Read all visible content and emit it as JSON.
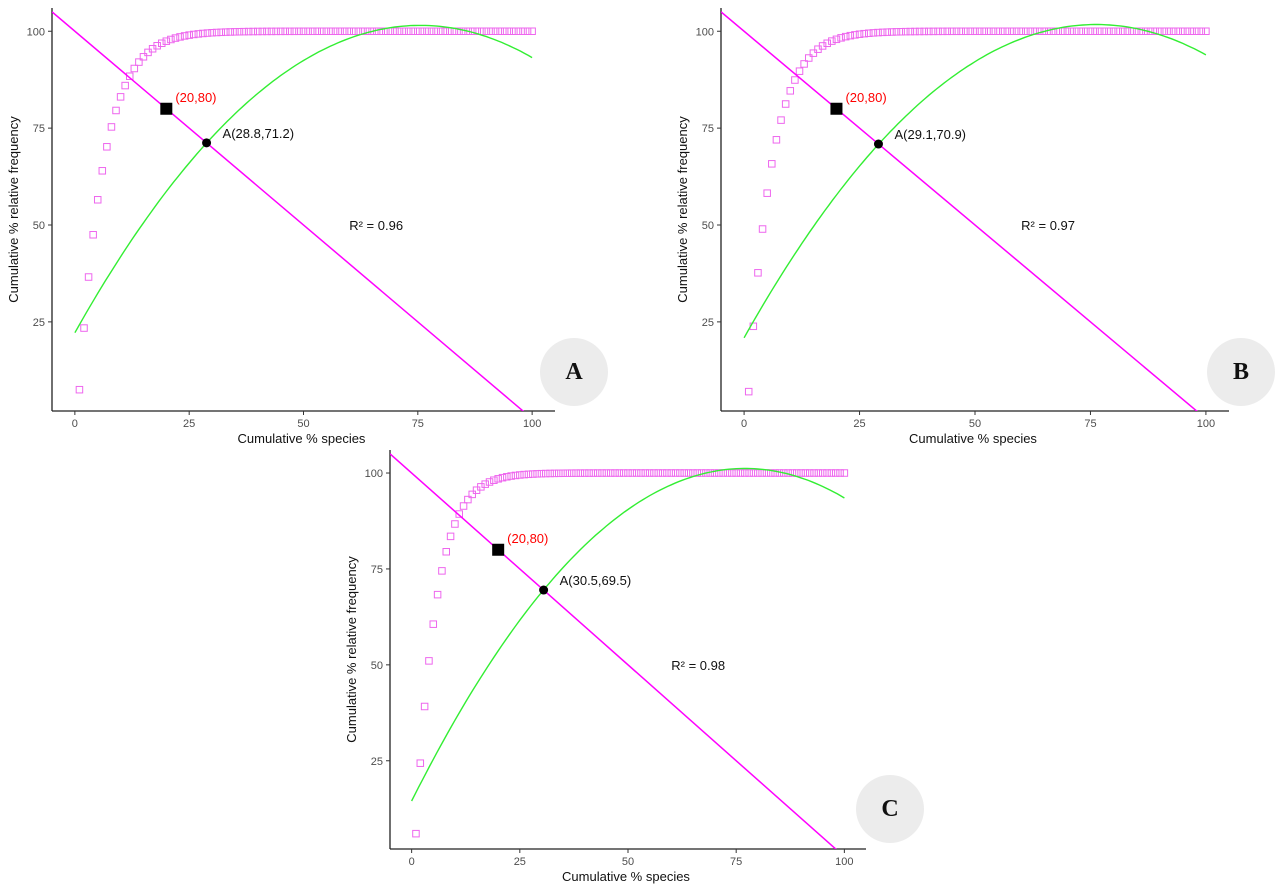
{
  "chart_data": [
    {
      "id": "A",
      "type": "scatter",
      "panel_label": "A",
      "xlabel": "Cumulative % species",
      "ylabel": "Cumulative % relative frequency",
      "xlim": [
        -5,
        105
      ],
      "ylim": [
        2,
        106
      ],
      "x_ticks": [
        0,
        25,
        50,
        75,
        100
      ],
      "y_ticks": [
        25,
        50,
        75,
        100
      ],
      "grid": false,
      "reference_point": {
        "x": 20,
        "y": 80,
        "label": "(20,80)"
      },
      "intersection": {
        "x": 28.8,
        "y": 71.2,
        "label": "A(28.8,71.2)"
      },
      "diagonal_line": {
        "intercept": 100,
        "slope": -1
      },
      "fit": {
        "type": "quadratic",
        "a": -0.0139,
        "b": 2.1,
        "c": 22.2,
        "x_range": [
          0,
          100
        ]
      },
      "r_squared_label": "R² = 0.96",
      "r_squared_position": {
        "x": 60,
        "y": 50
      },
      "points": {
        "x_range": [
          1,
          100
        ],
        "count": 100,
        "min_y": 7.5,
        "max_y": 100,
        "k": 5.3
      },
      "colors": {
        "line": "#ff00ff",
        "fit": "#33ee33",
        "points": "#ee66ee",
        "reference_label": "#ff0000"
      }
    },
    {
      "id": "B",
      "type": "scatter",
      "panel_label": "B",
      "xlabel": "Cumulative % species",
      "ylabel": "Cumulative % relative frequency",
      "xlim": [
        -5,
        105
      ],
      "ylim": [
        2,
        106
      ],
      "x_ticks": [
        0,
        25,
        50,
        75,
        100
      ],
      "y_ticks": [
        25,
        50,
        75,
        100
      ],
      "grid": false,
      "reference_point": {
        "x": 20,
        "y": 80,
        "label": "(20,80)"
      },
      "intersection": {
        "x": 29.1,
        "y": 70.9,
        "label": "A(29.1,70.9)"
      },
      "diagonal_line": {
        "intercept": 100,
        "slope": -1
      },
      "fit": {
        "type": "quadratic",
        "a": -0.0139,
        "b": 2.12,
        "c": 20.9,
        "x_range": [
          0,
          100
        ]
      },
      "r_squared_label": "R² = 0.97",
      "r_squared_position": {
        "x": 60,
        "y": 50
      },
      "points": {
        "x_range": [
          1,
          100
        ],
        "count": 100,
        "min_y": 7.0,
        "max_y": 100,
        "k": 5.0
      },
      "colors": {
        "line": "#ff00ff",
        "fit": "#33ee33",
        "points": "#ee66ee",
        "reference_label": "#ff0000"
      }
    },
    {
      "id": "C",
      "type": "scatter",
      "panel_label": "C",
      "xlabel": "Cumulative % species",
      "ylabel": "Cumulative % relative frequency",
      "xlim": [
        -5,
        105
      ],
      "ylim": [
        2,
        106
      ],
      "x_ticks": [
        0,
        25,
        50,
        75,
        100
      ],
      "y_ticks": [
        25,
        50,
        75,
        100
      ],
      "grid": false,
      "reference_point": {
        "x": 20,
        "y": 80,
        "label": "(20,80)"
      },
      "intersection": {
        "x": 30.5,
        "y": 69.5,
        "label": "A(30.5,69.5)"
      },
      "diagonal_line": {
        "intercept": 100,
        "slope": -1
      },
      "fit": {
        "type": "quadratic",
        "a": -0.0146,
        "b": 2.25,
        "c": 14.5,
        "x_range": [
          0,
          100
        ]
      },
      "r_squared_label": "R² = 0.98",
      "r_squared_position": {
        "x": 60,
        "y": 50
      },
      "points": {
        "x_range": [
          1,
          100
        ],
        "count": 100,
        "min_y": 6.0,
        "max_y": 100,
        "k": 4.6
      },
      "colors": {
        "line": "#ff00ff",
        "fit": "#33ee33",
        "points": "#ee66ee",
        "reference_label": "#ff0000"
      }
    }
  ]
}
